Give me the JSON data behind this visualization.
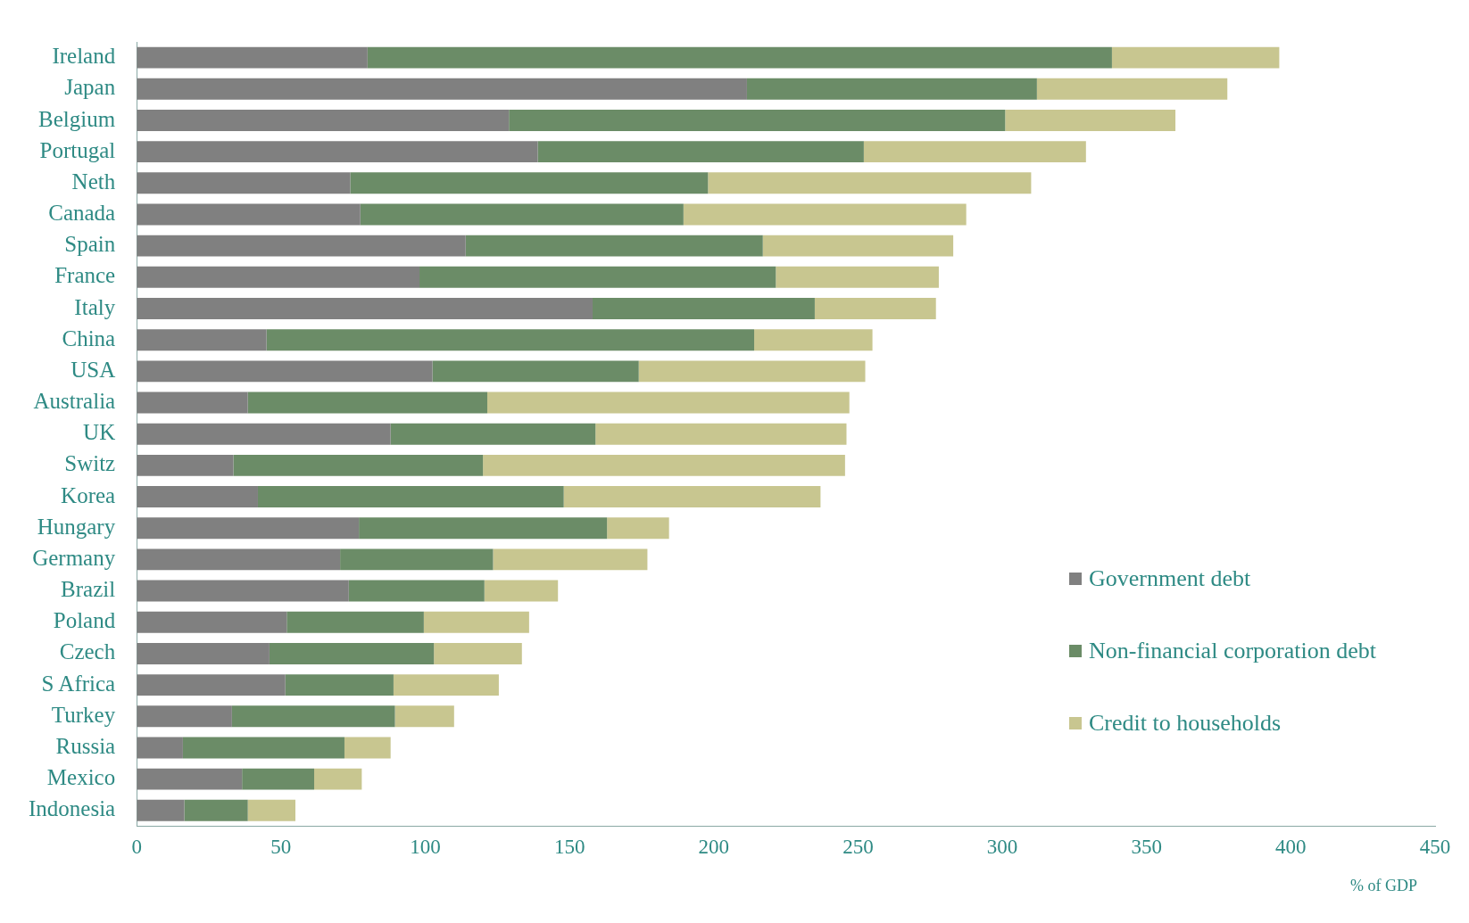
{
  "chart_data": {
    "type": "bar",
    "orientation": "horizontal",
    "stacked": true,
    "categories": [
      "Ireland",
      "Japan",
      "Belgium",
      "Portugal",
      "Neth",
      "Canada",
      "Spain",
      "France",
      "Italy",
      "China",
      "USA",
      "Australia",
      "UK",
      "Switz",
      "Korea",
      "Hungary",
      "Germany",
      "Brazil",
      "Poland",
      "Czech",
      "S Africa",
      "Turkey",
      "Russia",
      "Mexico",
      "Indonesia"
    ],
    "series": [
      {
        "name": "Government debt",
        "color": "#808080",
        "values": [
          80,
          211.5,
          129,
          139,
          74,
          77.5,
          114,
          98,
          158,
          45,
          102.5,
          38.5,
          88,
          33.5,
          42,
          77,
          70.5,
          73.5,
          52,
          46,
          51.5,
          33,
          16,
          36.5,
          16.5
        ]
      },
      {
        "name": "Non-financial corporation debt",
        "color": "#6b8c67",
        "values": [
          258,
          100.5,
          172,
          113,
          124,
          112,
          103,
          123.5,
          77,
          169,
          71.5,
          83,
          71,
          86.5,
          106,
          86,
          53,
          47,
          47.5,
          57,
          37.5,
          56.5,
          56,
          25,
          22
        ]
      },
      {
        "name": "Credit to households",
        "color": "#c8c690",
        "values": [
          58,
          66,
          59,
          77,
          112,
          98,
          66,
          56.5,
          42,
          41,
          78.5,
          125.5,
          87,
          125.5,
          89,
          21.5,
          53.5,
          25.5,
          36.5,
          30.5,
          36.5,
          20.5,
          16,
          16.5,
          16.5
        ]
      }
    ],
    "xlim": [
      0,
      450
    ],
    "xticks": [
      0,
      50,
      100,
      150,
      200,
      250,
      300,
      350,
      400,
      450
    ],
    "grid": false,
    "legend": "right",
    "annotations": [
      "% of GDP"
    ]
  }
}
